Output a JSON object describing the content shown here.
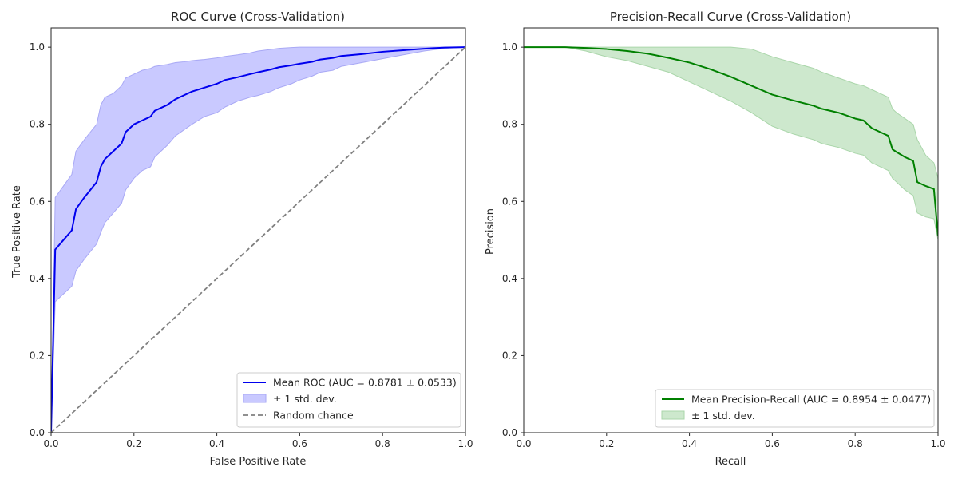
{
  "colors": {
    "roc_line": "#0000ee",
    "roc_band": "#c9c9ff",
    "roc_band_edge": "#a9a9f5",
    "pr_line": "#008000",
    "pr_band": "#cde8cd",
    "pr_band_edge": "#aad6aa",
    "diagonal": "#808080",
    "axis": "#262626"
  },
  "chart_data": [
    {
      "type": "line",
      "title": "ROC Curve (Cross-Validation)",
      "xlabel": "False Positive Rate",
      "ylabel": "True Positive Rate",
      "xlim": [
        0,
        1
      ],
      "ylim": [
        0,
        1.05
      ],
      "xticks": [
        "0.0",
        "0.2",
        "0.4",
        "0.6",
        "0.8",
        "1.0"
      ],
      "yticks": [
        "0.0",
        "0.2",
        "0.4",
        "0.6",
        "0.8",
        "1.0"
      ],
      "grid": false,
      "legend_position": "lower-right",
      "series": [
        {
          "name": "Mean ROC (AUC = 0.8781 ± 0.0533)",
          "kind": "line",
          "x": [
            0.0,
            0.01,
            0.03,
            0.05,
            0.06,
            0.08,
            0.11,
            0.12,
            0.13,
            0.15,
            0.17,
            0.18,
            0.2,
            0.22,
            0.24,
            0.25,
            0.28,
            0.3,
            0.32,
            0.34,
            0.37,
            0.4,
            0.42,
            0.45,
            0.48,
            0.5,
            0.53,
            0.55,
            0.58,
            0.6,
            0.63,
            0.65,
            0.68,
            0.7,
            0.75,
            0.8,
            0.85,
            0.9,
            0.95,
            1.0
          ],
          "y": [
            0.0,
            0.475,
            0.5,
            0.525,
            0.58,
            0.61,
            0.65,
            0.69,
            0.71,
            0.73,
            0.75,
            0.78,
            0.8,
            0.81,
            0.82,
            0.835,
            0.85,
            0.865,
            0.875,
            0.885,
            0.895,
            0.905,
            0.915,
            0.922,
            0.93,
            0.935,
            0.942,
            0.948,
            0.953,
            0.957,
            0.962,
            0.968,
            0.972,
            0.977,
            0.982,
            0.988,
            0.992,
            0.996,
            0.999,
            1.0
          ]
        },
        {
          "name": "± 1 std. dev.",
          "kind": "band",
          "x": [
            0.0,
            0.01,
            0.03,
            0.05,
            0.06,
            0.08,
            0.11,
            0.12,
            0.13,
            0.15,
            0.17,
            0.18,
            0.2,
            0.22,
            0.24,
            0.25,
            0.28,
            0.3,
            0.32,
            0.34,
            0.37,
            0.4,
            0.42,
            0.45,
            0.48,
            0.5,
            0.53,
            0.55,
            0.58,
            0.6,
            0.63,
            0.65,
            0.68,
            0.7,
            0.75,
            0.8,
            0.85,
            0.9,
            0.95,
            1.0
          ],
          "upper": [
            0.0,
            0.61,
            0.64,
            0.67,
            0.73,
            0.76,
            0.8,
            0.85,
            0.87,
            0.88,
            0.9,
            0.92,
            0.93,
            0.94,
            0.945,
            0.95,
            0.955,
            0.96,
            0.962,
            0.965,
            0.968,
            0.972,
            0.976,
            0.98,
            0.985,
            0.99,
            0.994,
            0.997,
            0.999,
            1.0,
            1.0,
            1.0,
            1.0,
            1.0,
            1.0,
            1.0,
            1.0,
            1.0,
            1.0,
            1.0
          ],
          "lower": [
            0.0,
            0.34,
            0.36,
            0.38,
            0.42,
            0.45,
            0.49,
            0.52,
            0.545,
            0.57,
            0.595,
            0.63,
            0.66,
            0.68,
            0.69,
            0.715,
            0.745,
            0.77,
            0.785,
            0.8,
            0.82,
            0.83,
            0.845,
            0.86,
            0.87,
            0.875,
            0.885,
            0.895,
            0.905,
            0.915,
            0.925,
            0.935,
            0.94,
            0.95,
            0.96,
            0.97,
            0.98,
            0.99,
            0.997,
            1.0
          ]
        },
        {
          "name": "Random chance",
          "kind": "dashed",
          "x": [
            0.0,
            1.0
          ],
          "y": [
            0.0,
            1.0
          ]
        }
      ]
    },
    {
      "type": "line",
      "title": "Precision-Recall Curve (Cross-Validation)",
      "xlabel": "Recall",
      "ylabel": "Precision",
      "xlim": [
        0,
        1
      ],
      "ylim": [
        0,
        1.05
      ],
      "xticks": [
        "0.0",
        "0.2",
        "0.4",
        "0.6",
        "0.8",
        "1.0"
      ],
      "yticks": [
        "0.0",
        "0.2",
        "0.4",
        "0.6",
        "0.8",
        "1.0"
      ],
      "grid": false,
      "legend_position": "lower-right",
      "series": [
        {
          "name": "Mean Precision-Recall (AUC = 0.8954 ± 0.0477)",
          "kind": "line",
          "x": [
            0.0,
            0.1,
            0.15,
            0.2,
            0.25,
            0.3,
            0.35,
            0.4,
            0.45,
            0.5,
            0.55,
            0.6,
            0.65,
            0.7,
            0.72,
            0.76,
            0.8,
            0.82,
            0.84,
            0.86,
            0.88,
            0.89,
            0.9,
            0.92,
            0.94,
            0.95,
            0.97,
            0.99,
            1.0
          ],
          "y": [
            1.0,
            1.0,
            0.998,
            0.995,
            0.99,
            0.983,
            0.972,
            0.96,
            0.943,
            0.923,
            0.9,
            0.877,
            0.862,
            0.848,
            0.84,
            0.83,
            0.815,
            0.81,
            0.79,
            0.78,
            0.77,
            0.735,
            0.728,
            0.715,
            0.705,
            0.65,
            0.64,
            0.632,
            0.51
          ]
        },
        {
          "name": "± 1 std. dev.",
          "kind": "band",
          "x": [
            0.0,
            0.1,
            0.15,
            0.2,
            0.25,
            0.3,
            0.35,
            0.4,
            0.45,
            0.5,
            0.55,
            0.6,
            0.65,
            0.7,
            0.72,
            0.76,
            0.8,
            0.82,
            0.84,
            0.86,
            0.88,
            0.89,
            0.9,
            0.92,
            0.94,
            0.95,
            0.97,
            0.99,
            1.0
          ],
          "upper": [
            1.0,
            1.0,
            1.0,
            1.0,
            1.0,
            1.0,
            1.0,
            1.0,
            1.0,
            1.0,
            0.995,
            0.975,
            0.96,
            0.945,
            0.935,
            0.92,
            0.905,
            0.9,
            0.89,
            0.88,
            0.87,
            0.84,
            0.83,
            0.815,
            0.8,
            0.76,
            0.72,
            0.7,
            0.66
          ],
          "lower": [
            1.0,
            1.0,
            0.99,
            0.975,
            0.965,
            0.95,
            0.935,
            0.91,
            0.885,
            0.86,
            0.83,
            0.795,
            0.775,
            0.76,
            0.75,
            0.74,
            0.725,
            0.72,
            0.7,
            0.69,
            0.68,
            0.66,
            0.65,
            0.63,
            0.615,
            0.57,
            0.56,
            0.555,
            0.5
          ]
        }
      ]
    }
  ]
}
